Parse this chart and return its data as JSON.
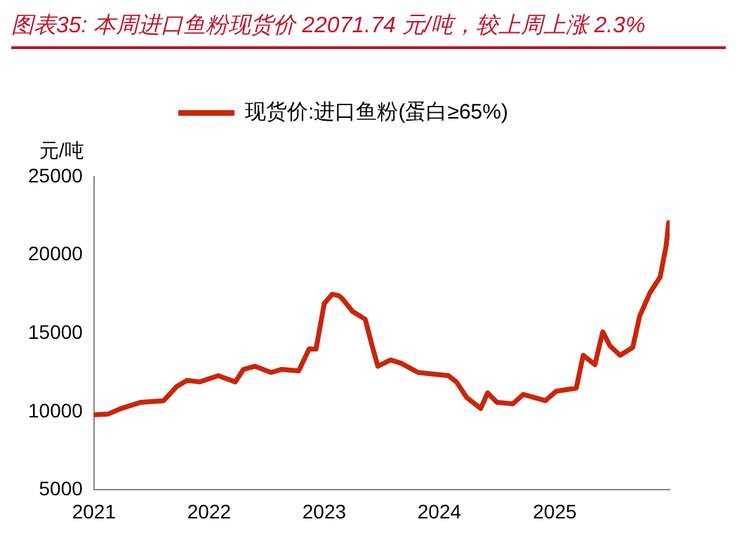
{
  "chart_data": {
    "type": "line",
    "title": "图表35:  本周进口鱼粉现货价 22071.74 元/吨，较上周上涨 2.3%",
    "ylabel": "元/吨",
    "x": [
      "2021-01-01",
      "2021-02-15",
      "2021-03-28",
      "2021-05-30",
      "2021-08-10",
      "2021-09-20",
      "2021-10-23",
      "2021-12-02",
      "2022-01-30",
      "2022-03-25",
      "2022-04-20",
      "2022-05-26",
      "2022-07-16",
      "2022-08-18",
      "2022-10-12",
      "2022-11-14",
      "2022-12-06",
      "2023-01-01",
      "2023-01-26",
      "2023-02-17",
      "2023-02-28",
      "2023-04-01",
      "2023-05-11",
      "2023-06-02",
      "2023-06-20",
      "2023-07-30",
      "2023-09-01",
      "2023-10-26",
      "2024-01-30",
      "2024-02-24",
      "2024-03-28",
      "2024-05-11",
      "2024-06-02",
      "2024-07-01",
      "2024-08-21",
      "2024-09-23",
      "2024-12-02",
      "2025-01-05",
      "2025-03-10",
      "2025-04-01",
      "2025-05-08",
      "2025-06-02",
      "2025-06-25",
      "2025-07-27",
      "2025-09-05",
      "2025-09-27",
      "2025-10-30",
      "2025-12-01",
      "2025-12-20",
      "2025-12-28"
    ],
    "series": [
      {
        "name": "现货价:进口鱼粉(蛋白≥65%)",
        "color": "#c8260a",
        "values": [
          9800,
          9850,
          10200,
          10600,
          10700,
          11600,
          12000,
          11900,
          12300,
          11900,
          12700,
          12900,
          12500,
          12700,
          12600,
          14000,
          14000,
          16900,
          17500,
          17400,
          17200,
          16400,
          15900,
          14200,
          12900,
          13300,
          13100,
          12500,
          12300,
          11900,
          10900,
          10200,
          11200,
          10600,
          10500,
          11100,
          10700,
          11300,
          11500,
          13600,
          13000,
          15100,
          14200,
          13600,
          14100,
          16100,
          17600,
          18600,
          20600,
          22070
        ]
      }
    ],
    "xlim": [
      "2021-01-01",
      "2025-12-31"
    ],
    "xticks": [
      "2021",
      "2022",
      "2023",
      "2024",
      "2025"
    ],
    "ylim": [
      5000,
      25000
    ],
    "yticks": [
      5000,
      10000,
      15000,
      20000,
      25000
    ],
    "grid": false,
    "legend": "top",
    "marker": "none",
    "line_style": "solid"
  }
}
